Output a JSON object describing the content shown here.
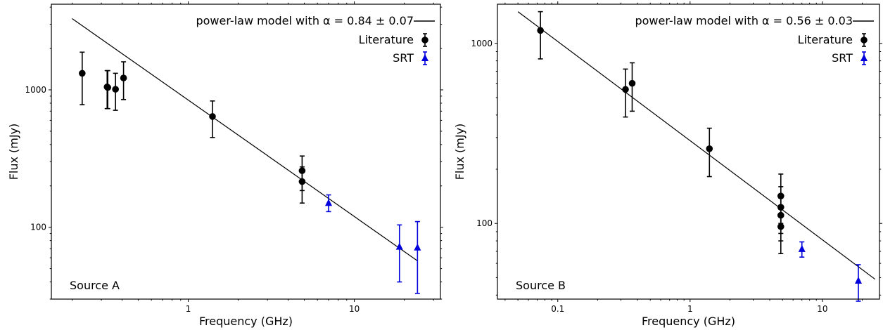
{
  "chart_data": [
    {
      "type": "scatter",
      "panel_label": "Source A",
      "xlabel": "Frequency (GHz)",
      "ylabel": "Flux (mJy)",
      "xscale": "log",
      "yscale": "log",
      "xlim": [
        0.15,
        33
      ],
      "ylim": [
        30,
        4200
      ],
      "xticks": [
        1,
        10
      ],
      "xtick_labels": [
        "1",
        "10"
      ],
      "yticks": [
        100,
        1000
      ],
      "ytick_labels": [
        "100",
        "1000"
      ],
      "legend_position": "top-right",
      "model": {
        "name": "power-law model  with",
        "alpha_text": "α = 0.84 ± 0.07",
        "x": [
          0.2,
          24
        ],
        "y": [
          3300,
          57
        ]
      },
      "series": [
        {
          "name": "Literature",
          "marker": "circle",
          "color": "#000000",
          "points": [
            {
              "x": 0.23,
              "y": 1320,
              "ylo": 780,
              "yhi": 1880
            },
            {
              "x": 0.325,
              "y": 1050,
              "ylo": 730,
              "yhi": 1380
            },
            {
              "x": 0.328,
              "y": 1040,
              "ylo": 730,
              "yhi": 1380
            },
            {
              "x": 0.365,
              "y": 1010,
              "ylo": 710,
              "yhi": 1320
            },
            {
              "x": 0.408,
              "y": 1220,
              "ylo": 850,
              "yhi": 1600
            },
            {
              "x": 1.4,
              "y": 640,
              "ylo": 450,
              "yhi": 830
            },
            {
              "x": 4.85,
              "y": 258,
              "ylo": 185,
              "yhi": 330
            },
            {
              "x": 4.85,
              "y": 215,
              "ylo": 150,
              "yhi": 275
            }
          ]
        },
        {
          "name": "SRT",
          "marker": "triangle",
          "color": "#0000dd",
          "points": [
            {
              "x": 7.0,
              "y": 150,
              "ylo": 130,
              "yhi": 172
            },
            {
              "x": 18.7,
              "y": 72,
              "ylo": 40,
              "yhi": 104
            },
            {
              "x": 24.0,
              "y": 71,
              "ylo": 33,
              "yhi": 110
            }
          ]
        }
      ]
    },
    {
      "type": "scatter",
      "panel_label": "Source B",
      "xlabel": "Frequency (GHz)",
      "ylabel": "Flux (mJy)",
      "xscale": "log",
      "yscale": "log",
      "xlim": [
        0.035,
        27
      ],
      "ylim": [
        38,
        1650
      ],
      "xticks": [
        0.1,
        1,
        10
      ],
      "xtick_labels": [
        "0.1",
        "1",
        "10"
      ],
      "yticks": [
        100,
        1000
      ],
      "ytick_labels": [
        "100",
        "1000"
      ],
      "legend_position": "top-right",
      "model": {
        "name": "power-law model  with",
        "alpha_text": "α = 0.56 ± 0.03",
        "x": [
          0.05,
          25
        ],
        "y": [
          1500,
          49
        ]
      },
      "series": [
        {
          "name": "Literature",
          "marker": "circle",
          "color": "#000000",
          "points": [
            {
              "x": 0.074,
              "y": 1180,
              "ylo": 820,
              "yhi": 1500
            },
            {
              "x": 0.325,
              "y": 555,
              "ylo": 390,
              "yhi": 720
            },
            {
              "x": 0.365,
              "y": 600,
              "ylo": 420,
              "yhi": 780
            },
            {
              "x": 1.4,
              "y": 260,
              "ylo": 182,
              "yhi": 338
            },
            {
              "x": 4.85,
              "y": 142,
              "ylo": 100,
              "yhi": 188
            },
            {
              "x": 4.85,
              "y": 123,
              "ylo": 88,
              "yhi": 160
            },
            {
              "x": 4.85,
              "y": 111,
              "ylo": 80,
              "yhi": 145
            },
            {
              "x": 4.85,
              "y": 96,
              "ylo": 68,
              "yhi": 124
            }
          ]
        },
        {
          "name": "SRT",
          "marker": "triangle",
          "color": "#0000dd",
          "points": [
            {
              "x": 7.0,
              "y": 72,
              "ylo": 65,
              "yhi": 79
            },
            {
              "x": 18.7,
              "y": 48,
              "ylo": 37,
              "yhi": 59
            }
          ]
        }
      ]
    }
  ]
}
